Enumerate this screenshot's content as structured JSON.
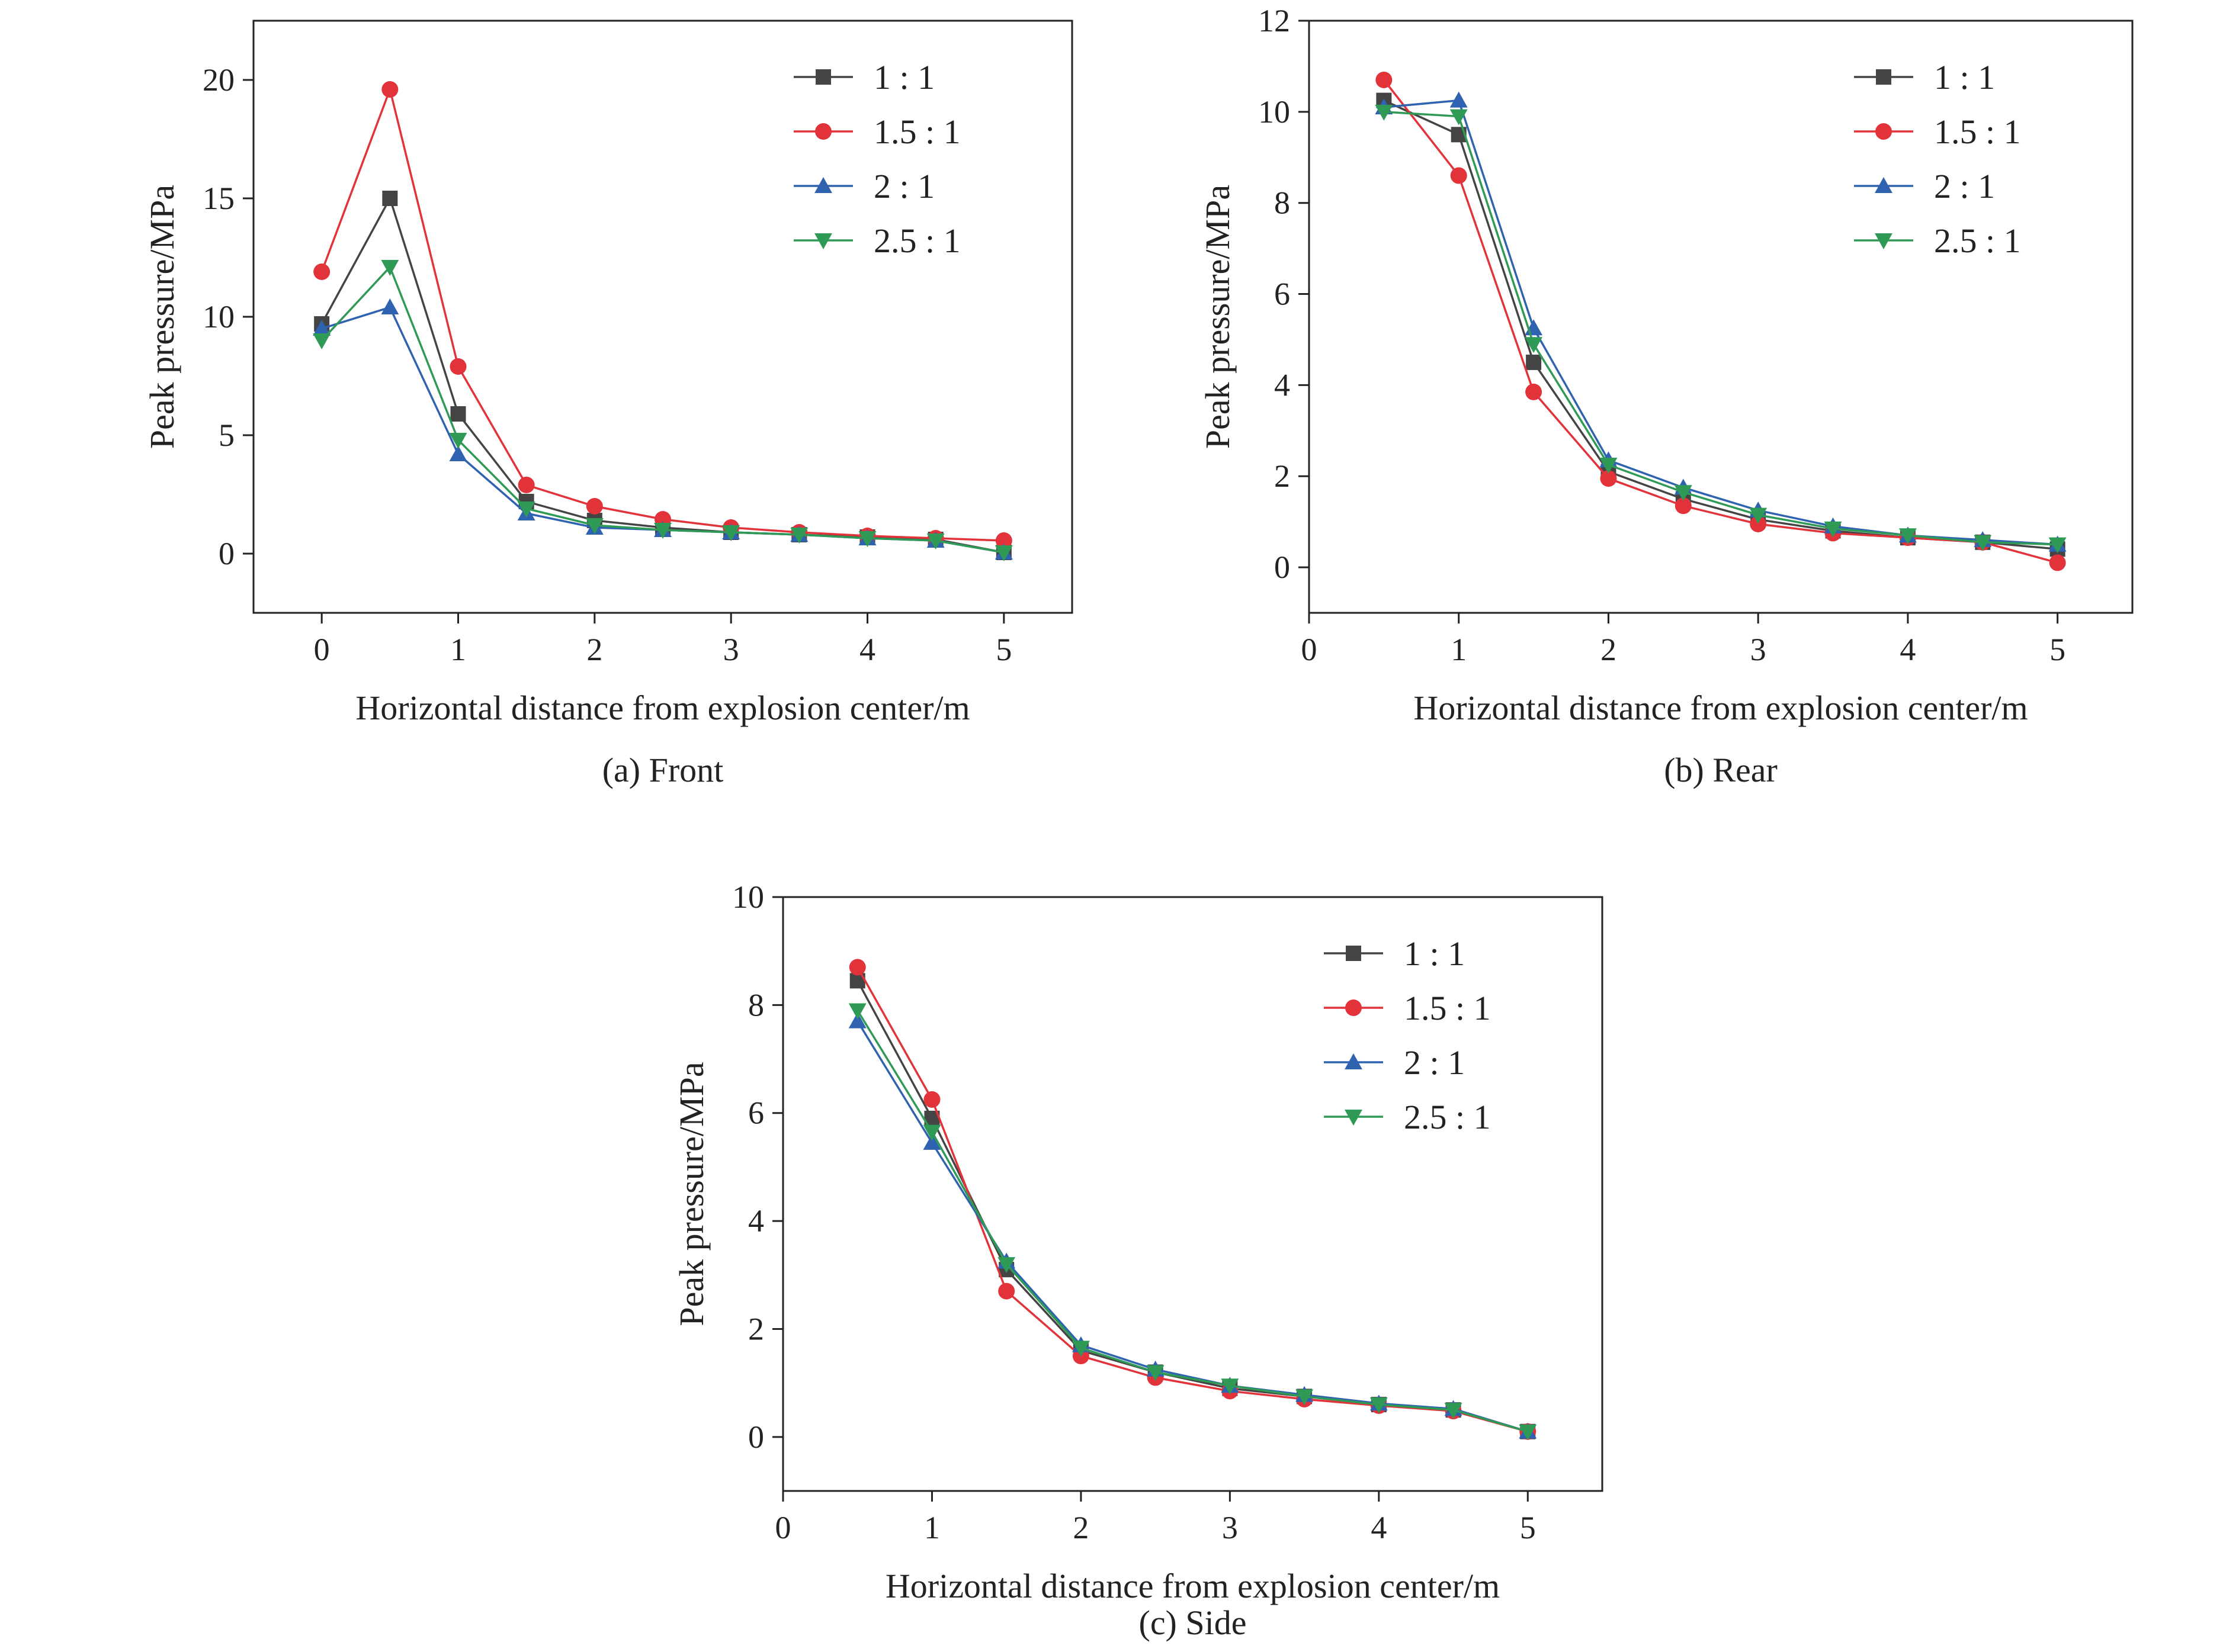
{
  "colors": {
    "1:1": "#444444",
    "1.5:1": "#e2323a",
    "2:1": "#2f63b0",
    "2.5:1": "#2e9a55"
  },
  "chart_data": [
    {
      "type": "line",
      "caption": "(a) Front",
      "xlabel": "Horizontal distance from explosion center/m",
      "ylabel": "Peak pressure/MPa",
      "xlim": [
        -0.5,
        5.5
      ],
      "ylim": [
        -2.5,
        22.5
      ],
      "xticks": [
        "0",
        "1",
        "2",
        "3",
        "4",
        "5"
      ],
      "yticks": [
        "0",
        "5",
        "10",
        "15",
        "20"
      ],
      "grid": false,
      "legend": "top-right",
      "x": [
        0,
        0.5,
        1,
        1.5,
        2,
        2.5,
        3,
        3.5,
        4,
        4.5,
        5
      ],
      "series": [
        {
          "name": "1 : 1",
          "key": "1:1",
          "marker": "square",
          "values": [
            9.7,
            15.0,
            5.9,
            2.2,
            1.4,
            1.1,
            0.9,
            0.8,
            0.7,
            0.6,
            0.05
          ]
        },
        {
          "name": "1.5 : 1",
          "key": "1.5:1",
          "marker": "circle",
          "values": [
            11.9,
            19.6,
            7.9,
            2.9,
            2.0,
            1.45,
            1.1,
            0.9,
            0.75,
            0.65,
            0.55
          ]
        },
        {
          "name": "2 : 1",
          "key": "2:1",
          "marker": "triangle-up",
          "values": [
            9.5,
            10.4,
            4.2,
            1.7,
            1.1,
            1.0,
            0.9,
            0.8,
            0.65,
            0.55,
            0.05
          ]
        },
        {
          "name": "2.5 : 1",
          "key": "2.5:1",
          "marker": "triangle-down",
          "values": [
            9.0,
            12.1,
            4.8,
            1.9,
            1.2,
            1.0,
            0.9,
            0.8,
            0.65,
            0.55,
            0.05
          ]
        }
      ]
    },
    {
      "type": "line",
      "caption": "(b) Rear",
      "xlabel": "Horizontal distance from explosion center/m",
      "ylabel": "Peak pressure/MPa",
      "xlim": [
        0,
        5.5
      ],
      "ylim": [
        -1,
        12
      ],
      "xticks": [
        "0",
        "1",
        "2",
        "3",
        "4",
        "5"
      ],
      "yticks": [
        "0",
        "2",
        "4",
        "6",
        "8",
        "10",
        "12"
      ],
      "grid": false,
      "legend": "top-right",
      "x": [
        0.5,
        1,
        1.5,
        2,
        2.5,
        3,
        3.5,
        4,
        4.5,
        5
      ],
      "series": [
        {
          "name": "1 : 1",
          "key": "1:1",
          "marker": "square",
          "values": [
            10.25,
            9.5,
            4.5,
            2.1,
            1.5,
            1.05,
            0.8,
            0.65,
            0.55,
            0.4
          ]
        },
        {
          "name": "1.5 : 1",
          "key": "1.5:1",
          "marker": "circle",
          "values": [
            10.7,
            8.6,
            3.85,
            1.95,
            1.35,
            0.95,
            0.75,
            0.65,
            0.55,
            0.1
          ]
        },
        {
          "name": "2 : 1",
          "key": "2:1",
          "marker": "triangle-up",
          "values": [
            10.1,
            10.25,
            5.25,
            2.35,
            1.75,
            1.25,
            0.9,
            0.7,
            0.6,
            0.5
          ]
        },
        {
          "name": "2.5 : 1",
          "key": "2.5:1",
          "marker": "triangle-down",
          "values": [
            10.0,
            9.9,
            4.9,
            2.25,
            1.65,
            1.15,
            0.85,
            0.7,
            0.55,
            0.5
          ]
        }
      ]
    },
    {
      "type": "line",
      "caption": "(c) Side",
      "xlabel": "Horizontal distance from explosion center/m",
      "ylabel": "Peak pressure/MPa",
      "xlim": [
        0,
        5.5
      ],
      "ylim": [
        -1,
        10
      ],
      "xticks": [
        "0",
        "1",
        "2",
        "3",
        "4",
        "5"
      ],
      "yticks": [
        "0",
        "2",
        "4",
        "6",
        "8",
        "10"
      ],
      "grid": false,
      "legend": "top-right",
      "x": [
        0.5,
        1,
        1.5,
        2,
        2.5,
        3,
        3.5,
        4,
        4.5,
        5
      ],
      "series": [
        {
          "name": "1 : 1",
          "key": "1:1",
          "marker": "square",
          "values": [
            8.45,
            5.9,
            3.1,
            1.6,
            1.2,
            0.9,
            0.75,
            0.6,
            0.5,
            0.1
          ]
        },
        {
          "name": "1.5 : 1",
          "key": "1.5:1",
          "marker": "circle",
          "values": [
            8.7,
            6.25,
            2.7,
            1.5,
            1.1,
            0.85,
            0.7,
            0.58,
            0.48,
            0.1
          ]
        },
        {
          "name": "2 : 1",
          "key": "2:1",
          "marker": "triangle-up",
          "values": [
            7.7,
            5.45,
            3.25,
            1.7,
            1.25,
            0.95,
            0.78,
            0.62,
            0.52,
            0.1
          ]
        },
        {
          "name": "2.5 : 1",
          "key": "2.5:1",
          "marker": "triangle-down",
          "values": [
            7.9,
            5.65,
            3.2,
            1.65,
            1.2,
            0.95,
            0.75,
            0.6,
            0.5,
            0.1
          ]
        }
      ]
    }
  ]
}
